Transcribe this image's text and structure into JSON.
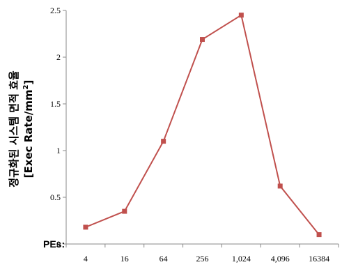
{
  "chart_data": {
    "type": "line",
    "x_prefix": "PEs:",
    "categories": [
      "4",
      "16",
      "64",
      "256",
      "1,024",
      "4,096",
      "16384"
    ],
    "values": [
      0.18,
      0.35,
      1.1,
      2.19,
      2.45,
      0.62,
      0.1
    ],
    "ylabel_line1": "정규화된 시스템 면적 효율",
    "ylabel_line2_prefix": "[Exec Rate/mm",
    "ylabel_line2_sup": "2",
    "ylabel_line2_suffix": "]",
    "ylim": [
      0,
      2.5
    ],
    "yticks": [
      "0",
      "0.5",
      "1",
      "1.5",
      "2",
      "2.5"
    ],
    "grid": false,
    "color": "#c0504d"
  }
}
